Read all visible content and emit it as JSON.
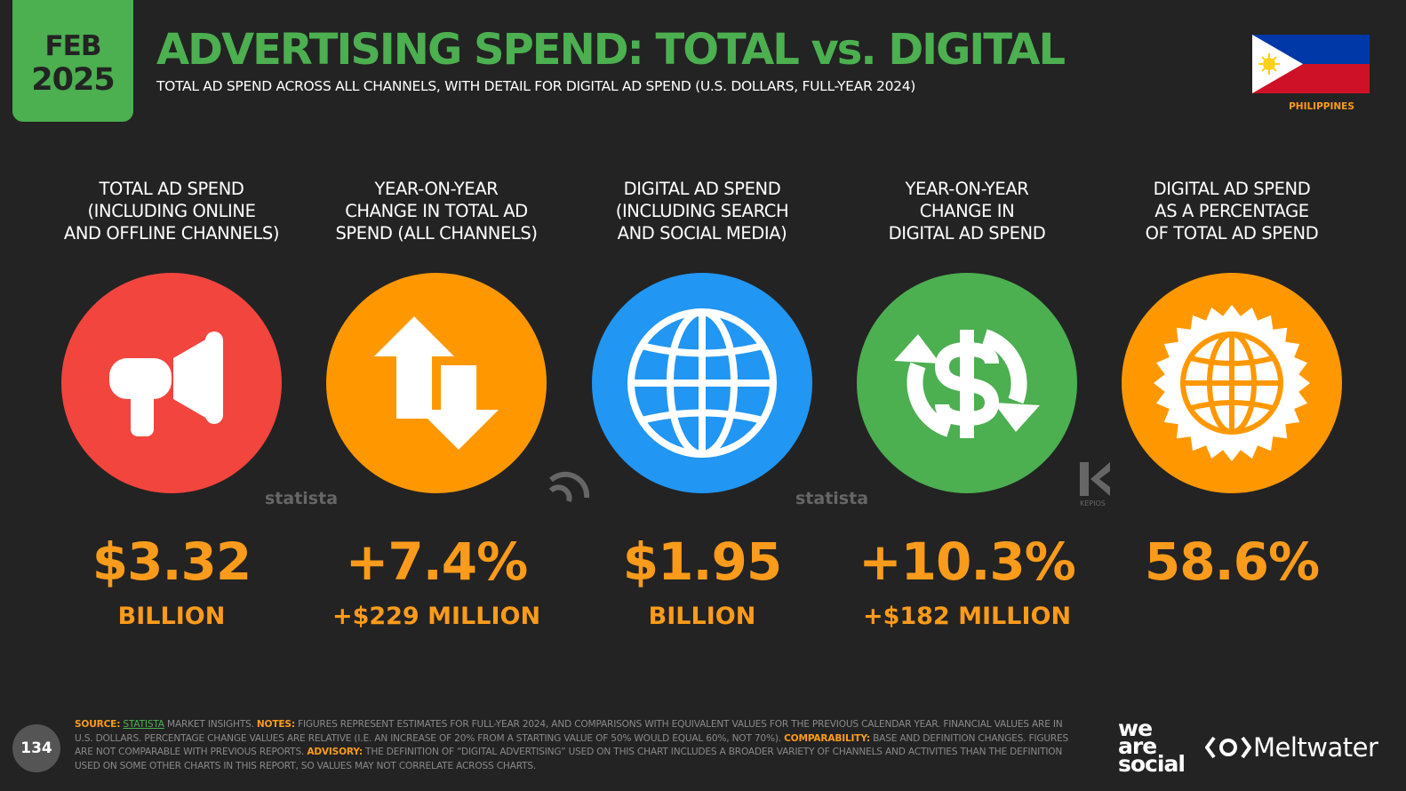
{
  "badge": {
    "month": "FEB",
    "year": "2025"
  },
  "header": {
    "title": "ADVERTISING SPEND: TOTAL vs. DIGITAL",
    "subtitle": "TOTAL AD SPEND ACROSS ALL CHANNELS, WITH DETAIL FOR DIGITAL AD SPEND (U.S. DOLLARS, FULL-YEAR 2024)"
  },
  "country": "PHILIPPINES",
  "stats": [
    {
      "label": [
        "TOTAL AD SPEND",
        "(INCLUDING ONLINE",
        "AND OFFLINE CHANNELS)"
      ],
      "value": "$3.32",
      "unit": "BILLION"
    },
    {
      "label": [
        "YEAR-ON-YEAR",
        "CHANGE IN TOTAL AD",
        "SPEND (ALL CHANNELS)"
      ],
      "value": "+7.4%",
      "unit": "+$229 MILLION"
    },
    {
      "label": [
        "DIGITAL AD SPEND",
        "(INCLUDING SEARCH",
        "AND SOCIAL MEDIA)"
      ],
      "value": "$1.95",
      "unit": "BILLION"
    },
    {
      "label": [
        "YEAR-ON-YEAR",
        "CHANGE IN",
        "DIGITAL AD SPEND"
      ],
      "value": "+10.3%",
      "unit": "+$182 MILLION"
    },
    {
      "label": [
        "DIGITAL AD SPEND",
        "AS A PERCENTAGE",
        "OF TOTAL AD SPEND"
      ],
      "value": "58.6%"
    }
  ],
  "watermarks": {
    "statista": "statista",
    "kepios": "KEPIOS"
  },
  "footer": {
    "page": "134",
    "source_label": "SOURCE:",
    "source": "STATISTA",
    "source_rest": "MARKET INSIGHTS.",
    "notes_label": "NOTES:",
    "notes": "FIGURES REPRESENT ESTIMATES FOR FULL-YEAR 2024, AND COMPARISONS WITH EQUIVALENT VALUES FOR THE PREVIOUS CALENDAR YEAR. FINANCIAL VALUES ARE IN U.S. DOLLARS. PERCENTAGE CHANGE VALUES ARE RELATIVE (I.E. AN INCREASE OF 20% FROM A STARTING VALUE OF 50% WOULD EQUAL 60%, NOT 70%).",
    "comparability_label": "COMPARABILITY:",
    "comparability": "BASE AND DEFINITION CHANGES. FIGURES ARE NOT COMPARABLE WITH PREVIOUS REPORTS.",
    "advisory_label": "ADVISORY:",
    "advisory": "THE DEFINITION OF “DIGITAL ADVERTISING” USED ON THIS CHART INCLUDES A BROADER VARIETY OF CHANNELS AND ACTIVITIES THAN THE DEFINITION USED ON SOME OTHER CHARTS IN THIS REPORT, SO VALUES MAY NOT CORRELATE ACROSS CHARTS."
  },
  "brands": {
    "was": [
      "we",
      "are",
      "social"
    ],
    "meltwater": "Meltwater"
  }
}
